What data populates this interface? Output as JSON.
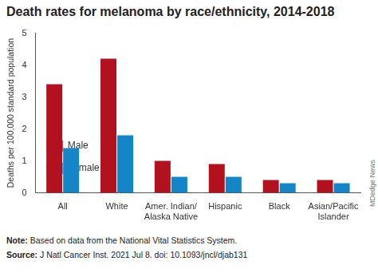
{
  "chart_data": {
    "type": "bar",
    "title": "Death rates for melanoma by race/ethnicity, 2014-2018",
    "y_label": "Deaths per 100,000 standard population",
    "categories": [
      "All",
      "White",
      "Amer. Indian/ Alaska Native",
      "Hispanic",
      "Black",
      "Asian/Pacific Islander"
    ],
    "series": [
      {
        "name": "Male",
        "color": "#b2121f",
        "values": [
          3.4,
          4.2,
          1.0,
          0.9,
          0.4,
          0.4
        ]
      },
      {
        "name": "Female",
        "color": "#1585c8",
        "values": [
          1.4,
          1.8,
          0.5,
          0.5,
          0.3,
          0.3
        ]
      }
    ],
    "ylim": [
      0,
      5
    ],
    "yticks": [
      0,
      1,
      2,
      3,
      4,
      5
    ],
    "grid": false,
    "legend": "upper right",
    "notes": [
      "Note: Based on data from the National Vital Statistics System.",
      "Source: J Natl Cancer Inst. 2021 Jul 8. doi: 10.1093/jncl/djab131"
    ],
    "credit": "MDedge News"
  }
}
